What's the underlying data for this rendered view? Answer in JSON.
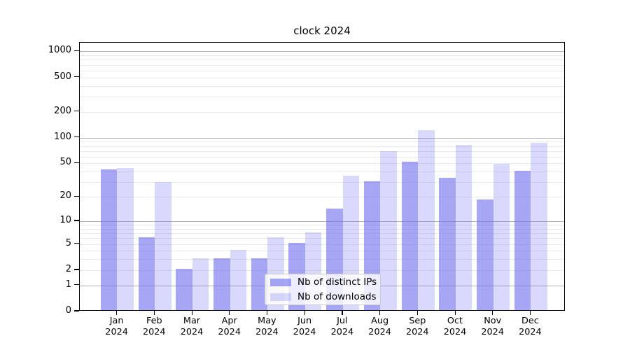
{
  "chart_data": {
    "type": "bar",
    "title": "clock 2024",
    "categories": [
      "Jan",
      "Feb",
      "Mar",
      "Apr",
      "May",
      "Jun",
      "Jul",
      "Aug",
      "Sep",
      "Oct",
      "Nov",
      "Dec"
    ],
    "category_year_suffix": "2024",
    "series": [
      {
        "name": "Nb of distinct IPs",
        "color": "rgba(107,107,239,0.6)",
        "values": [
          41,
          6,
          2,
          3,
          3,
          5,
          14,
          30,
          51,
          33,
          18,
          40
        ]
      },
      {
        "name": "Nb of downloads",
        "color": "rgba(107,107,239,0.26)",
        "values": [
          43,
          29,
          3,
          4,
          6,
          7,
          35,
          68,
          118,
          80,
          48,
          84
        ]
      }
    ],
    "yscale": "log1p",
    "ylim": [
      0,
      1290
    ],
    "ytick_values": [
      0,
      1,
      2,
      5,
      10,
      20,
      50,
      100,
      200,
      500,
      1000
    ],
    "major_grid_values": [
      1,
      10,
      100,
      1000
    ],
    "grid": true,
    "legend_position": "lower center",
    "colors": {
      "major_grid": "#b0b0b0",
      "minor_grid": "#e9e9e9",
      "axis": "#000000",
      "text": "#000000"
    }
  }
}
